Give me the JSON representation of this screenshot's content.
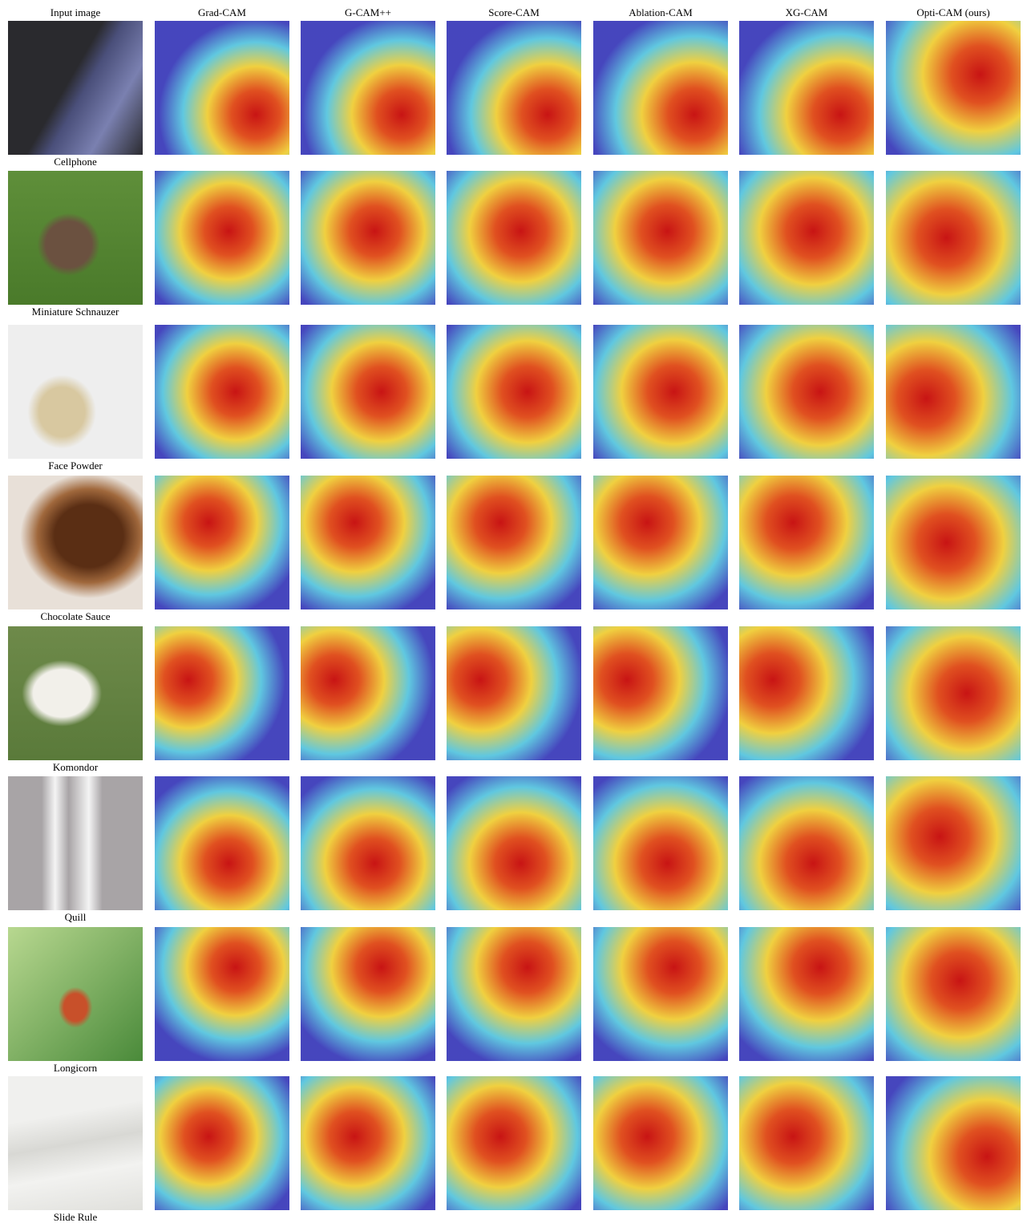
{
  "columns": [
    "Input image",
    "Grad-CAM",
    "G-CAM++",
    "Score-CAM",
    "Ablation-CAM",
    "XG-CAM",
    "Opti-CAM (ours)"
  ],
  "rows": [
    {
      "label": "Cellphone"
    },
    {
      "label": "Miniature Schnauzer"
    },
    {
      "label": "Face Powder"
    },
    {
      "label": "Chocolate Sauce"
    },
    {
      "label": "Komondor"
    },
    {
      "label": "Quill"
    },
    {
      "label": "Longicorn"
    },
    {
      "label": "Slide Rule"
    }
  ]
}
